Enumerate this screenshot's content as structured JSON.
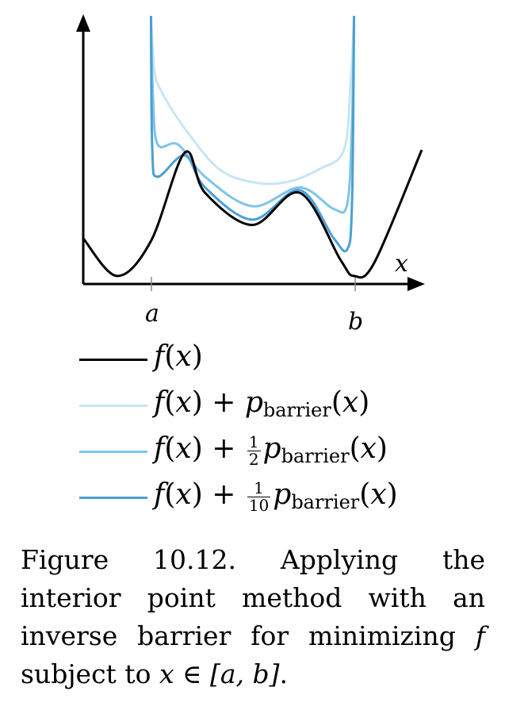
{
  "chart_data": {
    "type": "line",
    "xlabel": "x",
    "tick_labels": {
      "a": "a",
      "b": "b"
    },
    "domain": {
      "a": 1.0,
      "b": 4.0
    },
    "xlim": [
      0,
      5
    ],
    "ylim": [
      0,
      10
    ],
    "grid": false,
    "legend_placement": "below",
    "series": [
      {
        "name": "f(x)",
        "color": "#000000",
        "x": [
          0.0,
          0.5,
          1.0,
          1.5,
          1.8,
          2.5,
          3.2,
          3.8,
          4.0,
          4.3,
          5.0
        ],
        "y": [
          1.7,
          0.3,
          1.6,
          4.9,
          3.4,
          2.2,
          3.4,
          0.9,
          0.3,
          0.8,
          5.0
        ]
      },
      {
        "name": "f(x) + p_barrier(x)",
        "color": "#c8e5f4",
        "x": [
          1.0,
          1.05,
          1.15,
          1.5,
          2.0,
          2.5,
          3.0,
          3.5,
          3.85,
          3.95,
          4.0
        ],
        "y": [
          10,
          8.0,
          7.2,
          5.8,
          4.3,
          3.8,
          3.8,
          4.3,
          5.0,
          7.5,
          10
        ]
      },
      {
        "name": "f(x) + 1/2 p_barrier(x)",
        "color": "#7ec4e9",
        "x": [
          1.0,
          1.03,
          1.1,
          1.4,
          1.8,
          2.5,
          3.2,
          3.7,
          3.9,
          3.97,
          4.0
        ],
        "y": [
          10,
          7.0,
          5.2,
          5.2,
          4.0,
          2.9,
          3.6,
          2.8,
          3.0,
          6.0,
          10
        ]
      },
      {
        "name": "f(x) + 1/10 p_barrier(x)",
        "color": "#4c9fd6",
        "x": [
          1.0,
          1.02,
          1.1,
          1.5,
          1.8,
          2.5,
          3.2,
          3.7,
          3.9,
          3.97,
          4.0
        ],
        "y": [
          10,
          5.0,
          4.0,
          4.8,
          3.6,
          2.4,
          3.5,
          1.7,
          1.3,
          3.0,
          10
        ]
      }
    ]
  },
  "legend": {
    "f": "f",
    "x": "x",
    "plus": "+",
    "sub_barrier": "barrier",
    "p": "p",
    "frac_half": {
      "num": "1",
      "den": "2"
    },
    "frac_tenth": {
      "num": "1",
      "den": "10"
    }
  },
  "caption": {
    "prefix": "Figure 10.12. Applying the interior point method with an inverse barrier for minimizing ",
    "f": "f",
    "middle": " subject to ",
    "expr": "x ∈ [a, b]",
    "suffix": "."
  }
}
